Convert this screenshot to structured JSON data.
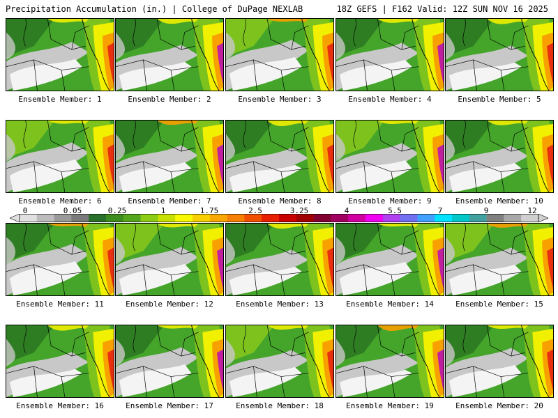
{
  "header": {
    "left": "Precipitation Accumulation (in.) | College of DuPage NEXLAB",
    "right": "18Z GEFS | F162 Valid: 12Z SUN NOV 16 2025"
  },
  "label_prefix": "Ensemble Member: ",
  "members": [
    1,
    2,
    3,
    4,
    5,
    6,
    7,
    8,
    9,
    10,
    11,
    12,
    13,
    14,
    15,
    16,
    17,
    18,
    19,
    20
  ],
  "member_labels": [
    "Ensemble Member: 1",
    "Ensemble Member: 2",
    "Ensemble Member: 3",
    "Ensemble Member: 4",
    "Ensemble Member: 5",
    "Ensemble Member: 6",
    "Ensemble Member: 7",
    "Ensemble Member: 8",
    "Ensemble Member: 9",
    "Ensemble Member: 10",
    "Ensemble Member: 11",
    "Ensemble Member: 12",
    "Ensemble Member: 13",
    "Ensemble Member: 14",
    "Ensemble Member: 15",
    "Ensemble Member: 16",
    "Ensemble Member: 17",
    "Ensemble Member: 18",
    "Ensemble Member: 19",
    "Ensemble Member: 20"
  ],
  "colorbar": {
    "ticks": [
      "0",
      "0.05",
      "0.25",
      "1",
      "1.75",
      "2.5",
      "3.25",
      "4",
      "5.5",
      "7",
      "9",
      "12"
    ],
    "colors": [
      "#e0e0e0",
      "#bcbcbc",
      "#9a9a9a",
      "#7a7a7a",
      "#2a6f2a",
      "#3c8c1e",
      "#55a51d",
      "#8ccc14",
      "#c8e000",
      "#f8f800",
      "#f8d000",
      "#f8a800",
      "#f88000",
      "#f05000",
      "#e82000",
      "#c80000",
      "#a00000",
      "#800030",
      "#a00060",
      "#d000a0",
      "#f000f0",
      "#b040f0",
      "#7070f0",
      "#40a0ff",
      "#00e0ff",
      "#00c8c8",
      "#40a0a0",
      "#808080",
      "#a8a8a8",
      "#d0d0d0"
    ]
  },
  "map_colors": {
    "white": "#f4f4f4",
    "lightgray": "#c8c8c8",
    "gray": "#a0a0a0",
    "green_dark": "#2e7d22",
    "green": "#44a52a",
    "green_light": "#7ec21e",
    "yellow": "#f0f000",
    "orange": "#f8a000",
    "red": "#e83010",
    "magenta": "#c020a0"
  }
}
